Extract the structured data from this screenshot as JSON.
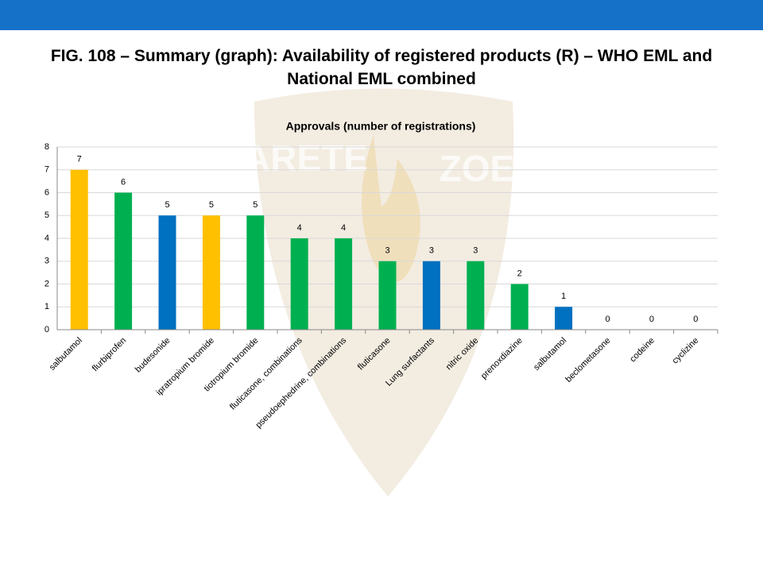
{
  "slide_title": "FIG. 108 – Summary (graph): Availability of registered products (R) – WHO EML and National EML combined",
  "watermark": [
    "ARETE",
    "ZOE"
  ],
  "chart_data": {
    "type": "bar",
    "title": "Approvals (number of registrations)",
    "categories": [
      "salbutamol",
      "flurbiprofen",
      "budesonide",
      "ipratropium bromide",
      "tiotropium bromide",
      "fluticasone, combinations",
      "pseudoephedrine, combinations",
      "fluticasone",
      "Lung surfactants",
      "nitric oxide",
      "prenoxdiazine",
      "salbutamol",
      "beclometasone",
      "codeine",
      "cyclizine"
    ],
    "values": [
      7,
      6,
      5,
      5,
      5,
      4,
      4,
      3,
      3,
      3,
      2,
      1,
      0,
      0,
      0
    ],
    "colors": [
      "#ffc000",
      "#00b050",
      "#0070c0",
      "#ffc000",
      "#00b050",
      "#00b050",
      "#00b050",
      "#00b050",
      "#0070c0",
      "#00b050",
      "#00b050",
      "#0070c0",
      "#00b050",
      "#00b050",
      "#00b050"
    ],
    "ylim": [
      0,
      8
    ],
    "yticks": [
      0,
      1,
      2,
      3,
      4,
      5,
      6,
      7,
      8
    ],
    "grid": true
  }
}
